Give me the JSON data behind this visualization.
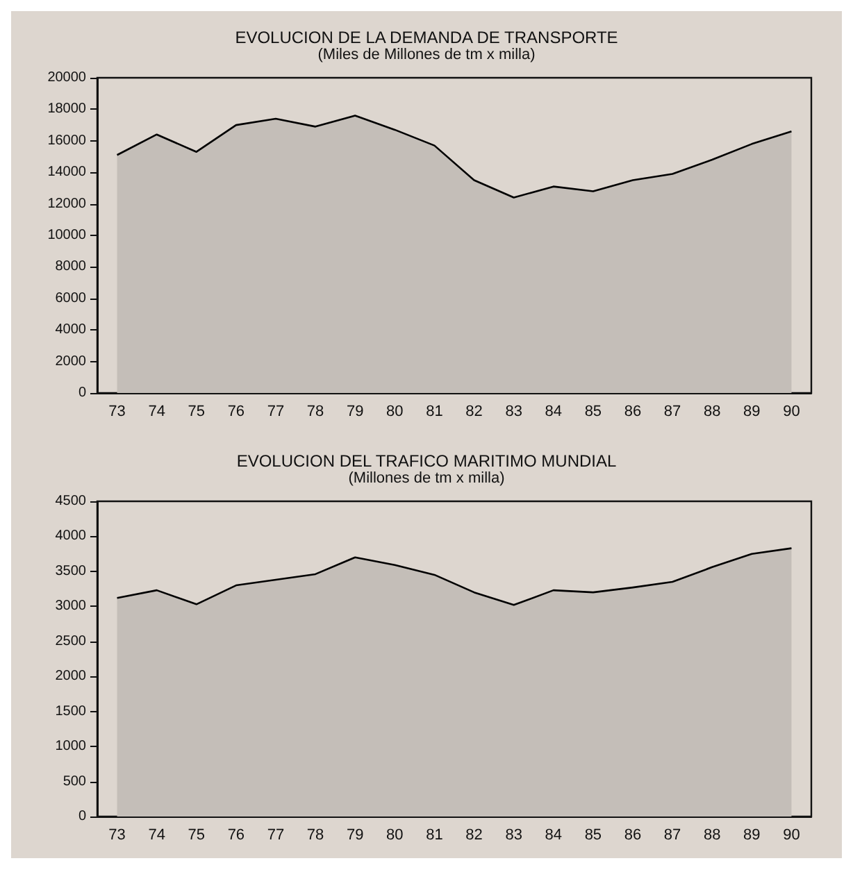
{
  "chart_data": [
    {
      "type": "area",
      "title": "EVOLUCION DE LA DEMANDA DE TRANSPORTE",
      "subtitle": "(Miles de Millones de tm x milla)",
      "categories": [
        "73",
        "74",
        "75",
        "76",
        "77",
        "78",
        "79",
        "80",
        "81",
        "82",
        "83",
        "84",
        "85",
        "86",
        "87",
        "88",
        "89",
        "90"
      ],
      "series": [
        {
          "color": "#c4beb8",
          "values": [
            15100,
            16400,
            15300,
            17000,
            17400,
            16900,
            17600,
            16700,
            15700,
            13500,
            12400,
            13100,
            12800,
            13500,
            13900,
            14800,
            15800,
            16600
          ]
        }
      ],
      "ylim": [
        0,
        20000
      ],
      "yticks": [
        0,
        2000,
        4000,
        6000,
        8000,
        10000,
        12000,
        14000,
        16000,
        18000,
        20000
      ],
      "grid": false
    },
    {
      "type": "area",
      "title": "EVOLUCION DEL TRAFICO MARITIMO MUNDIAL",
      "subtitle": "(Millones de tm x milla)",
      "categories": [
        "73",
        "74",
        "75",
        "76",
        "77",
        "78",
        "79",
        "80",
        "81",
        "82",
        "83",
        "84",
        "85",
        "86",
        "87",
        "88",
        "89",
        "90"
      ],
      "series": [
        {
          "color": "#c4beb8",
          "values": [
            3120,
            3230,
            3030,
            3300,
            3380,
            3460,
            3700,
            3590,
            3450,
            3200,
            3020,
            3230,
            3200,
            3270,
            3350,
            3560,
            3750,
            3830
          ]
        }
      ],
      "ylim": [
        0,
        4500
      ],
      "yticks": [
        0,
        500,
        1000,
        1500,
        2000,
        2500,
        3000,
        3500,
        4000,
        4500
      ],
      "grid": false
    }
  ]
}
